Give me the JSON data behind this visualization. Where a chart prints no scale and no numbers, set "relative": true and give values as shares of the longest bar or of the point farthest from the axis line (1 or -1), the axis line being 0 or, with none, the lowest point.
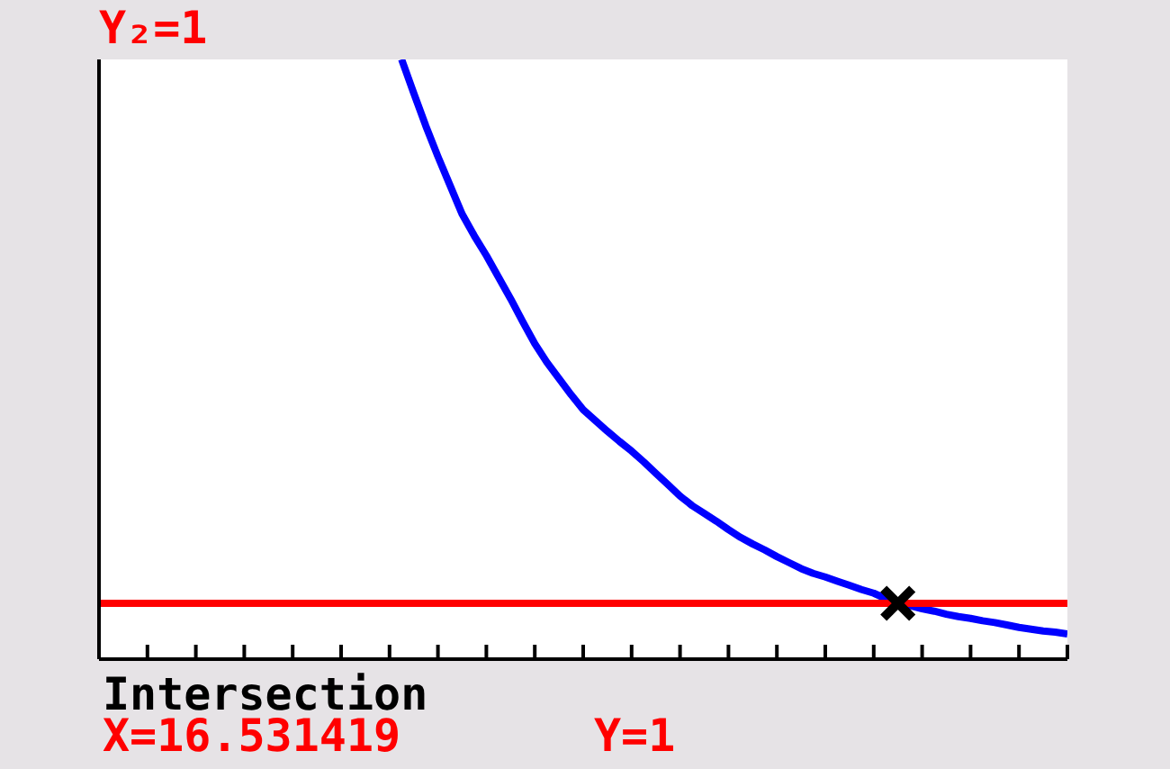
{
  "chart_data": {
    "type": "line",
    "relative": true,
    "marker": "none",
    "line_style": "solid",
    "categories": [
      null,
      null,
      null,
      null,
      null,
      null,
      null,
      null,
      null,
      null,
      null,
      null,
      null,
      null,
      null,
      null,
      null,
      null,
      null,
      null,
      null,
      null,
      null,
      null,
      null,
      null,
      null,
      null,
      null,
      null,
      null,
      null,
      null,
      null,
      null,
      null,
      null,
      null,
      null,
      null,
      null,
      null,
      null,
      null,
      null,
      null,
      null,
      null,
      null,
      null,
      null,
      null,
      null,
      null,
      null,
      null,
      null,
      null,
      null,
      null,
      null,
      null,
      null,
      null,
      null,
      null,
      null,
      null,
      null,
      null,
      null,
      null,
      null,
      null,
      null,
      null,
      null,
      null,
      null,
      null,
      null
    ],
    "series": [
      {
        "color": "#0000ff",
        "values": [
          null,
          null,
          null,
          null,
          null,
          null,
          null,
          null,
          null,
          null,
          null,
          null,
          null,
          null,
          null,
          null,
          null,
          null,
          null,
          null,
          null,
          null,
          null,
          null,
          null,
          1,
          0.944,
          0.889,
          0.838,
          0.79,
          0.742,
          0.706,
          0.673,
          0.637,
          0.601,
          0.563,
          0.526,
          0.495,
          0.468,
          0.441,
          0.416,
          0.398,
          0.38,
          0.363,
          0.347,
          0.329,
          0.31,
          0.291,
          0.272,
          0.256,
          0.243,
          0.23,
          0.216,
          0.203,
          0.192,
          0.182,
          0.171,
          0.161,
          0.151,
          0.143,
          0.137,
          0.13,
          0.123,
          0.116,
          0.11,
          0.101,
          0.093,
          0.089,
          0.084,
          0.08,
          0.075,
          0.071,
          0.068,
          0.064,
          0.061,
          0.057,
          0.053,
          0.05,
          0.047,
          0.045,
          0.042
        ]
      },
      {
        "name": "Y₂=1",
        "color": "#ff0000",
        "values": [
          0.093,
          0.093,
          0.093,
          0.093,
          0.093,
          0.093,
          0.093,
          0.093,
          0.093,
          0.093,
          0.093,
          0.093,
          0.093,
          0.093,
          0.093,
          0.093,
          0.093,
          0.093,
          0.093,
          0.093,
          0.093,
          0.093,
          0.093,
          0.093,
          0.093,
          0.093,
          0.093,
          0.093,
          0.093,
          0.093,
          0.093,
          0.093,
          0.093,
          0.093,
          0.093,
          0.093,
          0.093,
          0.093,
          0.093,
          0.093,
          0.093,
          0.093,
          0.093,
          0.093,
          0.093,
          0.093,
          0.093,
          0.093,
          0.093,
          0.093,
          0.093,
          0.093,
          0.093,
          0.093,
          0.093,
          0.093,
          0.093,
          0.093,
          0.093,
          0.093,
          0.093,
          0.093,
          0.093,
          0.093,
          0.093,
          0.093,
          0.093,
          0.093,
          0.093,
          0.093,
          0.093,
          0.093,
          0.093,
          0.093,
          0.093,
          0.093,
          0.093,
          0.093,
          0.093,
          0.093,
          0.093
        ]
      }
    ],
    "annotations": [
      "Intersection",
      "X=16.531419",
      "Y=1"
    ]
  }
}
